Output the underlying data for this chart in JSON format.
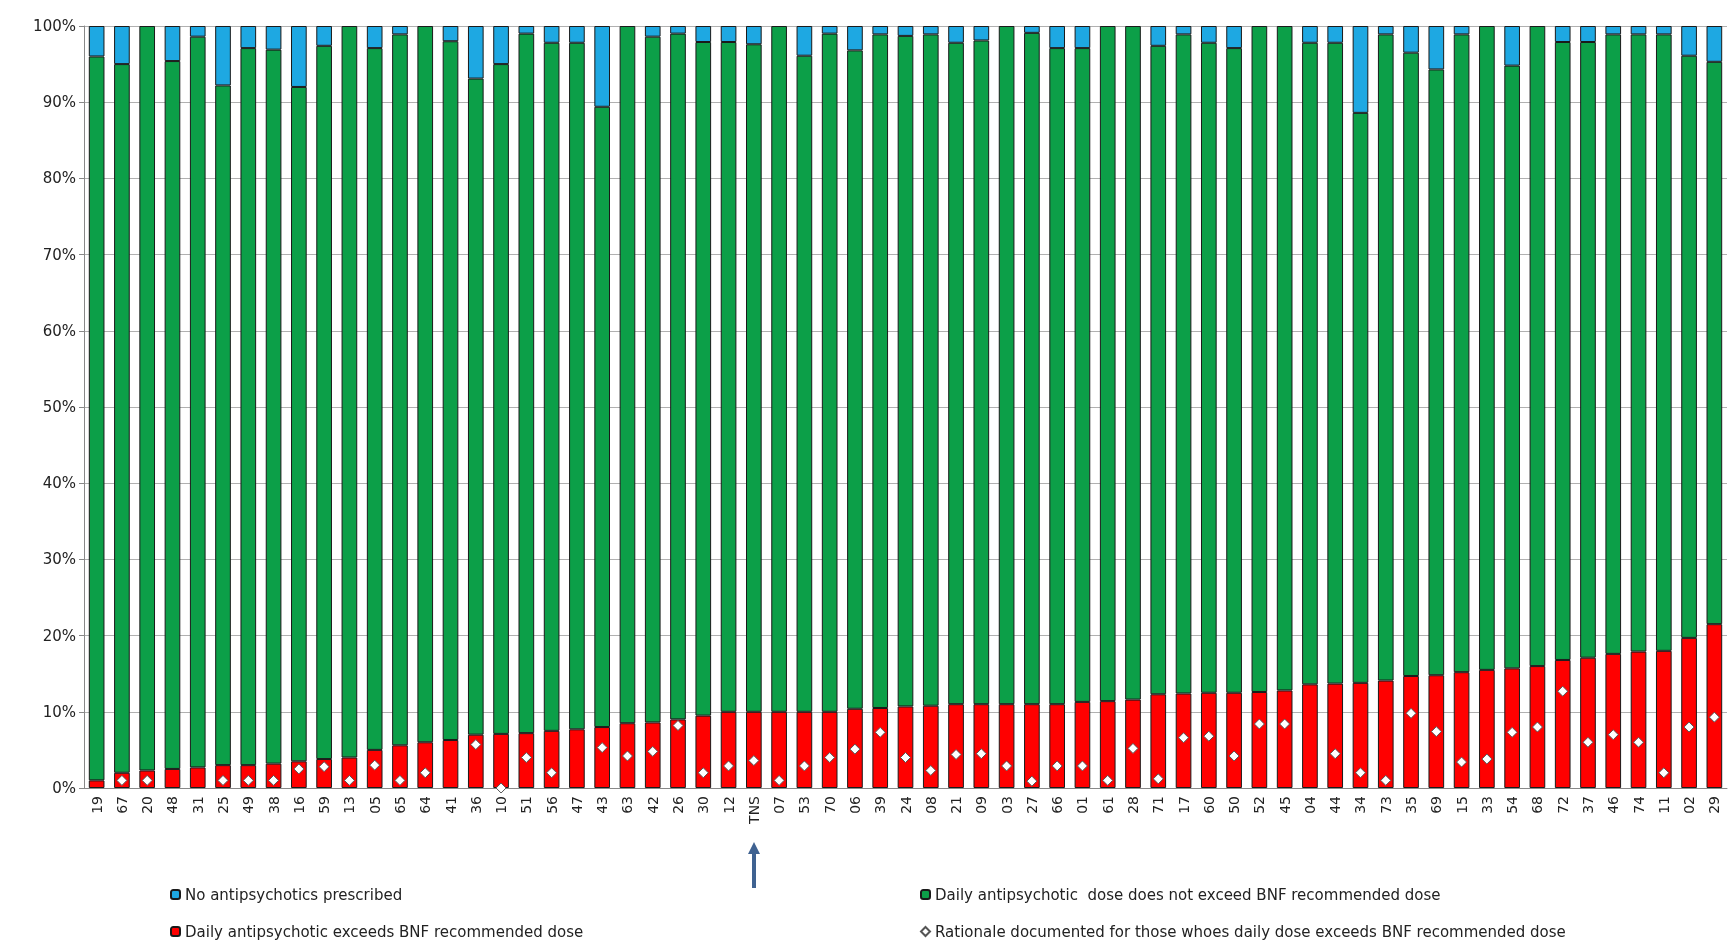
{
  "chart_data": {
    "type": "bar",
    "stacked": true,
    "legend": "bottom",
    "grid": "y",
    "marker": "diamond",
    "categories": [
      "19",
      "67",
      "20",
      "48",
      "31",
      "25",
      "49",
      "38",
      "16",
      "59",
      "13",
      "05",
      "65",
      "64",
      "41",
      "36",
      "10",
      "51",
      "56",
      "47",
      "43",
      "63",
      "42",
      "26",
      "30",
      "12",
      "TNS",
      "07",
      "53",
      "70",
      "06",
      "39",
      "24",
      "08",
      "21",
      "09",
      "03",
      "27",
      "66",
      "01",
      "61",
      "28",
      "71",
      "17",
      "60",
      "50",
      "52",
      "45",
      "04",
      "44",
      "34",
      "73",
      "35",
      "69",
      "15",
      "33",
      "54",
      "68",
      "72",
      "37",
      "46",
      "74",
      "11",
      "02",
      "29"
    ],
    "ylim": [
      0,
      100
    ],
    "yticks": [
      {
        "value": 0,
        "label": "0%"
      },
      {
        "value": 10,
        "label": "10%"
      },
      {
        "value": 20,
        "label": "20%"
      },
      {
        "value": 30,
        "label": "30%"
      },
      {
        "value": 40,
        "label": "40%"
      },
      {
        "value": 50,
        "label": "50%"
      },
      {
        "value": 60,
        "label": "60%"
      },
      {
        "value": 70,
        "label": "70%"
      },
      {
        "value": 80,
        "label": "80%"
      },
      {
        "value": 90,
        "label": "90%"
      },
      {
        "value": 100,
        "label": "100%"
      }
    ],
    "series": [
      {
        "name": "Daily antipsychotic exceeds BNF recommended dose",
        "color": "#ff0000",
        "values": [
          1,
          2,
          2.3,
          2.5,
          2.7,
          3,
          3,
          3.2,
          3.5,
          3.8,
          4,
          5,
          5.6,
          6,
          6.3,
          7,
          7.1,
          7.2,
          7.5,
          7.7,
          8,
          8.5,
          8.6,
          9,
          9.5,
          10,
          10,
          10,
          10,
          10,
          10.4,
          10.5,
          10.7,
          10.8,
          11,
          11,
          11,
          11,
          11,
          11.3,
          11.4,
          11.6,
          12.3,
          12.4,
          12.5,
          12.5,
          12.6,
          12.8,
          13.6,
          13.7,
          13.8,
          14.1,
          14.7,
          14.8,
          15.2,
          15.5,
          15.7,
          16,
          16.8,
          17.1,
          17.6,
          17.9,
          18,
          19.7,
          21.5
        ]
      },
      {
        "name": "Daily antipsychotic  dose does not exceed BNF recommended dose",
        "color": "#0c9f48",
        "values": [
          95,
          93,
          97.7,
          92.9,
          95.9,
          89.2,
          94.1,
          93.7,
          88.5,
          93.6,
          96,
          92.1,
          93.3,
          94,
          91.7,
          86.1,
          87.9,
          91.8,
          90.3,
          90.1,
          81.4,
          91.5,
          90,
          90,
          88.4,
          87.9,
          87.6,
          90,
          86.1,
          89,
          86.4,
          88.4,
          88,
          88.1,
          86.8,
          87.1,
          89,
          88.1,
          86.1,
          85.8,
          88.6,
          88.4,
          85.1,
          86.5,
          85.3,
          84.6,
          87.4,
          87.2,
          84.2,
          84.1,
          74.8,
          84.8,
          81.8,
          79.5,
          83.7,
          84.5,
          79.1,
          84,
          81.1,
          80.8,
          81.3,
          81,
          80.9,
          76.4,
          73.8
        ]
      },
      {
        "name": "No antipsychotics prescribed",
        "color": "#1ea8e2",
        "values": [
          4,
          5,
          0,
          4.6,
          1.4,
          7.8,
          2.9,
          3.1,
          8,
          2.6,
          0,
          2.9,
          1.1,
          0,
          2,
          6.9,
          5,
          1,
          2.2,
          2.2,
          10.6,
          0,
          1.4,
          1,
          2.1,
          2.1,
          2.4,
          0,
          3.9,
          1,
          3.2,
          1.1,
          1.3,
          1.1,
          2.2,
          1.9,
          0,
          0.9,
          2.9,
          2.9,
          0,
          0,
          2.6,
          1.1,
          2.2,
          2.9,
          0,
          0,
          2.2,
          2.2,
          11.4,
          1.1,
          3.5,
          5.7,
          1.1,
          0,
          5.2,
          0,
          2.1,
          2.1,
          1.1,
          1.1,
          1.1,
          3.9,
          4.7
        ]
      },
      {
        "name": "Rationale documented for those whoes daily dose exceeds BNF recommended dose",
        "type": "scatter",
        "color": "#ffffff",
        "x": [
          "19",
          "67",
          "20",
          "48",
          "31",
          "25",
          "49",
          "38",
          "16",
          "59",
          "13",
          "05",
          "65",
          "64",
          "41",
          "36",
          "10",
          "51",
          "56",
          "47",
          "43",
          "63",
          "42",
          "26",
          "30",
          "12",
          "TNS",
          "07",
          "53",
          "70",
          "06",
          "39",
          "24",
          "08",
          "21",
          "09",
          "03",
          "27",
          "66",
          "01",
          "61",
          "28",
          "71",
          "17",
          "60",
          "50",
          "52",
          "45",
          "04",
          "44",
          "34",
          "73",
          "35",
          "69",
          "15",
          "33",
          "54",
          "68",
          "72",
          "37",
          "46",
          "74",
          "11",
          "02",
          "29"
        ],
        "values": [
          null,
          1,
          1,
          null,
          null,
          1,
          1,
          1,
          2.5,
          2.8,
          1,
          3,
          1,
          2,
          null,
          5.7,
          0,
          4,
          2,
          null,
          5.3,
          4.2,
          4.8,
          8.2,
          2,
          2.9,
          3.6,
          1,
          2.9,
          4,
          5.1,
          7.3,
          4,
          2.3,
          4.4,
          4.5,
          2.9,
          0.9,
          2.9,
          2.9,
          1,
          5.2,
          1.2,
          6.6,
          6.8,
          4.2,
          8.4,
          8.4,
          null,
          4.5,
          2,
          1,
          9.8,
          7.4,
          3.4,
          3.8,
          7.3,
          8,
          12.7,
          6,
          7,
          6,
          2,
          8,
          9.3
        ]
      }
    ]
  }
}
